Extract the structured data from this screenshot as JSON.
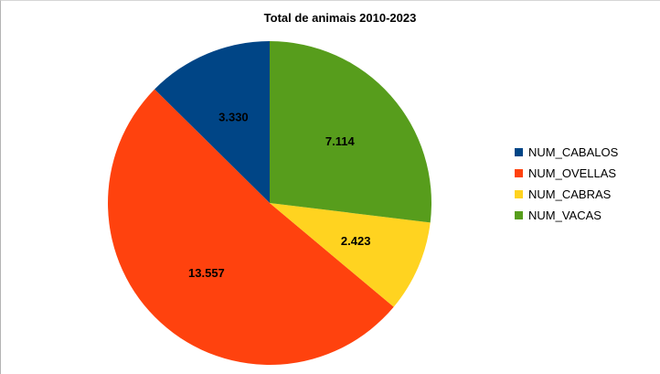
{
  "chart_data": {
    "type": "pie",
    "title": "Total de animais 2010-2023",
    "categories": [
      "NUM_CABALOS",
      "NUM_OVELLAS",
      "NUM_CABRAS",
      "NUM_VACAS"
    ],
    "values": [
      3330,
      13557,
      2423,
      7114
    ],
    "value_labels": [
      "3.330",
      "13.557",
      "2.423",
      "7.114"
    ],
    "colors": [
      "#004586",
      "#ff420e",
      "#ffd320",
      "#579d1c"
    ],
    "legend_position": "right",
    "slice_order": [
      "NUM_CABALOS",
      "NUM_OVELLAS",
      "NUM_CABRAS",
      "NUM_VACAS"
    ],
    "direction": "counterclockwise-from-top"
  }
}
